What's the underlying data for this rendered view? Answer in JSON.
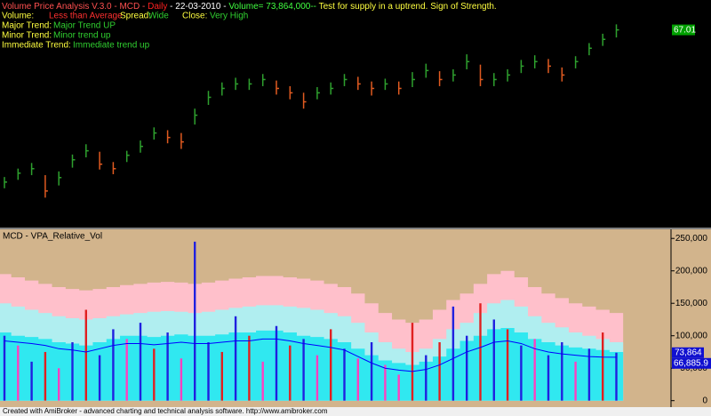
{
  "chart_data": [
    {
      "type": "hlc",
      "title_segments": [
        {
          "text": "Volume Price Analysis V.3.0 - MCD - ",
          "color": "#ff5050"
        },
        {
          "text": "Daily",
          "color": "#ff2020"
        },
        {
          "text": " - 22-03-2010 - ",
          "color": "#ffffff"
        },
        {
          "text": "Volume= 73,864,000--",
          "color": "#40ff40"
        },
        {
          "text": " Test for supply in a uptrend. Sign of Strength.",
          "color": "#ffff40"
        }
      ],
      "info": [
        [
          {
            "text": "Volume:",
            "color": "#ffff40"
          },
          {
            "text": "Less than Average",
            "color": "#ff3030"
          },
          {
            "text": "Spread:",
            "color": "#ffff40"
          },
          {
            "text": "Wide",
            "color": "#30d030"
          },
          {
            "text": "Close:",
            "color": "#ffff40"
          },
          {
            "text": "Very High",
            "color": "#30d030"
          }
        ],
        [
          {
            "text": "Major Trend:",
            "color": "#ffff40"
          },
          {
            "text": "Major Trend UP",
            "color": "#30d030"
          }
        ],
        [
          {
            "text": "Minor Trend:",
            "color": "#ffff40"
          },
          {
            "text": "Minor trend up",
            "color": "#30d030"
          }
        ],
        [
          {
            "text": "Immediate Trend:",
            "color": "#ffff40"
          },
          {
            "text": "Immediate trend up",
            "color": "#30d030"
          }
        ]
      ],
      "close": [
        50.76,
        51.71,
        52.19,
        49.81,
        51.24,
        53.14,
        54.1,
        52.67,
        52.19,
        53.62,
        54.57,
        56,
        55.52,
        55.05,
        57.9,
        59.81,
        60.76,
        61.24,
        61.24,
        61.71,
        60.76,
        60.29,
        59.33,
        60.29,
        60.76,
        61.71,
        61.24,
        60.76,
        61.24,
        60.76,
        61.71,
        62.67,
        61.71,
        62.19,
        63.62,
        61.71,
        61.71,
        62.19,
        63.14,
        63.62,
        63.14,
        62.19,
        63.62,
        65.05,
        66,
        67.01
      ],
      "high": [
        51.3,
        52.2,
        52.8,
        51.5,
        51.9,
        53.7,
        54.8,
        54,
        52.9,
        54.1,
        55.2,
        56.6,
        56.3,
        56,
        58.6,
        60.5,
        61.4,
        61.9,
        61.8,
        62.3,
        61.6,
        61,
        60.3,
        60.9,
        61.4,
        62.3,
        62,
        61.5,
        61.8,
        61.5,
        62.5,
        63.4,
        62.6,
        62.8,
        64.4,
        63.3,
        62.4,
        62.8,
        63.8,
        64.3,
        63.9,
        63,
        64.2,
        65.6,
        66.6,
        67.6
      ],
      "low": [
        50.1,
        51,
        51.5,
        49.1,
        50.4,
        52.3,
        53.4,
        52.1,
        51.6,
        52.9,
        53.9,
        55.3,
        54.9,
        54.3,
        56.9,
        59,
        60,
        60.6,
        60.6,
        61,
        60.1,
        59.6,
        58.6,
        59.6,
        60.1,
        61,
        60.6,
        60,
        60.6,
        60.1,
        60.9,
        61.9,
        61,
        61.5,
        62.8,
        61,
        61,
        61.5,
        62.4,
        62.9,
        62.4,
        61.5,
        62.9,
        64.3,
        65.3,
        66.2
      ],
      "up_color": "#2ea02e",
      "down_color": "#e05a20",
      "ylim": [
        46,
        70.2
      ],
      "last_close_label": "67.01",
      "label_color": "#00a000"
    },
    {
      "type": "bar",
      "title": "MCD - VPA_Relative_Vol",
      "values": [
        100000,
        85000,
        60000,
        75000,
        50000,
        90000,
        140000,
        70000,
        110000,
        95000,
        120000,
        80000,
        105000,
        65000,
        245000,
        90000,
        75000,
        130000,
        100000,
        60000,
        115000,
        85000,
        95000,
        70000,
        110000,
        80000,
        65000,
        90000,
        55000,
        40000,
        120000,
        70000,
        90000,
        145000,
        100000,
        150000,
        125000,
        110000,
        85000,
        95000,
        70000,
        90000,
        60000,
        80000,
        105000,
        73864
      ],
      "colors": [
        "#2020e0",
        "#ff40c0",
        "#2020e0",
        "#e02020",
        "#ff40c0",
        "#2020e0",
        "#e02020",
        "#2020e0",
        "#2020e0",
        "#ff40c0",
        "#2020e0",
        "#e02020",
        "#2020e0",
        "#ff40c0",
        "#2020e0",
        "#2020e0",
        "#e02020",
        "#2020e0",
        "#e02020",
        "#ff40c0",
        "#2020e0",
        "#e02020",
        "#2020e0",
        "#ff40c0",
        "#e02020",
        "#2020e0",
        "#ff40c0",
        "#2020e0",
        "#ff40c0",
        "#ff40c0",
        "#e02020",
        "#2020e0",
        "#e02020",
        "#2020e0",
        "#2020e0",
        "#e02020",
        "#2020e0",
        "#e02020",
        "#2020e0",
        "#ff40c0",
        "#2020e0",
        "#2020e0",
        "#ff40c0",
        "#2020e0",
        "#e02020",
        "#2020e0"
      ],
      "upper": [
        195000,
        190000,
        185000,
        180000,
        175000,
        172000,
        170000,
        172000,
        175000,
        178000,
        180000,
        182000,
        183000,
        182000,
        180000,
        182000,
        185000,
        188000,
        190000,
        192000,
        192000,
        190000,
        188000,
        185000,
        180000,
        175000,
        165000,
        150000,
        135000,
        125000,
        120000,
        125000,
        140000,
        155000,
        165000,
        180000,
        195000,
        200000,
        190000,
        175000,
        165000,
        158000,
        150000,
        145000,
        140000,
        135000
      ],
      "middle": [
        150000,
        145000,
        140000,
        135000,
        130000,
        127000,
        125000,
        127000,
        130000,
        133000,
        135000,
        137000,
        138000,
        137000,
        135000,
        137000,
        140000,
        143000,
        145000,
        147000,
        147000,
        145000,
        143000,
        140000,
        135000,
        130000,
        120000,
        105000,
        90000,
        80000,
        75000,
        80000,
        95000,
        110000,
        120000,
        135000,
        150000,
        155000,
        145000,
        130000,
        120000,
        113000,
        105000,
        100000,
        95000,
        90000
      ],
      "lower": [
        105000,
        100000,
        98000,
        95000,
        90000,
        88000,
        85000,
        90000,
        95000,
        100000,
        100000,
        98000,
        100000,
        102000,
        100000,
        100000,
        102000,
        105000,
        105000,
        108000,
        108000,
        105000,
        100000,
        98000,
        95000,
        90000,
        80000,
        70000,
        62000,
        58000,
        55000,
        60000,
        68000,
        80000,
        92000,
        100000,
        110000,
        112000,
        105000,
        95000,
        90000,
        85000,
        82000,
        80000,
        78000,
        75000
      ],
      "average": [
        92000,
        90000,
        88000,
        85000,
        80000,
        78000,
        75000,
        80000,
        85000,
        88000,
        88000,
        86000,
        88000,
        90000,
        88000,
        88000,
        90000,
        92000,
        92000,
        95000,
        95000,
        92000,
        88000,
        85000,
        82000,
        78000,
        68000,
        58000,
        50000,
        47000,
        45000,
        48000,
        55000,
        65000,
        75000,
        82000,
        90000,
        92000,
        88000,
        80000,
        75000,
        72000,
        70000,
        68000,
        67000,
        66885.9
      ],
      "band_colors": [
        "#ffc0cb",
        "#b0eef0",
        "#30e8f0"
      ],
      "line_color": "#0000ff",
      "background": "#d2b48c",
      "ylim": [
        -10000,
        264000
      ],
      "yticks": [
        0,
        {
          "value": 50000,
          "label": "50,000"
        },
        {
          "value": 100000,
          "label": "100,000"
        },
        {
          "value": 150000,
          "label": "150,000"
        },
        {
          "value": 200000,
          "label": "200,000"
        },
        {
          "value": 250000,
          "label": "250,000"
        }
      ],
      "last_value_label": "73,864",
      "last_average_label": "66,885.9"
    }
  ],
  "footer": "Created with AmiBroker - advanced charting and technical analysis software. http://www.amibroker.com"
}
